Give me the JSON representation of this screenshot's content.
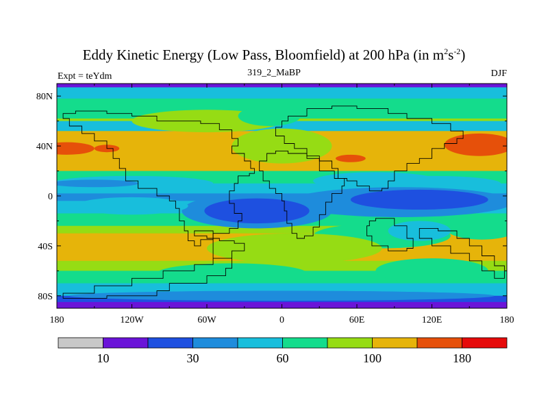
{
  "title": {
    "main": "Eddy Kinetic Energy (Low Pass, Bloomfield) at 200 hPa (in m",
    "sup1": "2",
    "mid": "s",
    "sup2": "-2",
    "end": ")"
  },
  "subtitle": "319_2_MaBP",
  "experiment_label": "Expt = teYdm",
  "season": "DJF",
  "axes": {
    "lat_ticks": [
      {
        "lat": 80,
        "label": "80N"
      },
      {
        "lat": 40,
        "label": "40N"
      },
      {
        "lat": 0,
        "label": "0"
      },
      {
        "lat": -40,
        "label": "40S"
      },
      {
        "lat": -80,
        "label": "80S"
      }
    ],
    "lon_ticks": [
      {
        "lon": -180,
        "label": "180"
      },
      {
        "lon": -120,
        "label": "120W"
      },
      {
        "lon": -60,
        "label": "60W"
      },
      {
        "lon": 0,
        "label": "0"
      },
      {
        "lon": 60,
        "label": "60E"
      },
      {
        "lon": 120,
        "label": "120E"
      },
      {
        "lon": 180,
        "label": "180"
      }
    ],
    "lat_range": [
      -90,
      90
    ],
    "lon_range": [
      -180,
      180
    ]
  },
  "colorbar": {
    "colors": [
      "#c8c8c8",
      "#6a14d8",
      "#1e50e0",
      "#1e8cdc",
      "#18bedc",
      "#14dc8c",
      "#96dc14",
      "#e6b40a",
      "#e6500a",
      "#e60a0a"
    ],
    "labels": [
      {
        "boundary": 1,
        "text": "10"
      },
      {
        "boundary": 3,
        "text": "30"
      },
      {
        "boundary": 5,
        "text": "60"
      },
      {
        "boundary": 7,
        "text": "100"
      },
      {
        "boundary": 9,
        "text": "180"
      }
    ]
  },
  "chart_data": {
    "type": "filled-contour-map",
    "variable": "Eddy Kinetic Energy (Low Pass, Bloomfield)",
    "level": "200 hPa",
    "units": "m2s-2",
    "season": "DJF",
    "contour_levels": [
      10,
      20,
      30,
      40,
      60,
      80,
      100,
      140,
      180
    ],
    "zonal_bands": [
      {
        "lat_from": 90,
        "lat_to": 87,
        "level": 1
      },
      {
        "lat_from": 87,
        "lat_to": 78,
        "level": 4
      },
      {
        "lat_from": 78,
        "lat_to": 62,
        "level": 5
      },
      {
        "lat_from": 62,
        "lat_to": 52,
        "level": 6
      },
      {
        "lat_from": 52,
        "lat_to": 20,
        "level": 7
      },
      {
        "lat_from": 20,
        "lat_to": 10,
        "level": 5
      },
      {
        "lat_from": 10,
        "lat_to": 2,
        "level": 4
      },
      {
        "lat_from": 2,
        "lat_to": -4,
        "level": 3
      },
      {
        "lat_from": -4,
        "lat_to": -14,
        "level": 4
      },
      {
        "lat_from": -14,
        "lat_to": -24,
        "level": 5
      },
      {
        "lat_from": -24,
        "lat_to": -30,
        "level": 6
      },
      {
        "lat_from": -30,
        "lat_to": -52,
        "level": 7
      },
      {
        "lat_from": -52,
        "lat_to": -60,
        "level": 6
      },
      {
        "lat_from": -60,
        "lat_to": -70,
        "level": 5
      },
      {
        "lat_from": -70,
        "lat_to": -80,
        "level": 4
      },
      {
        "lat_from": -80,
        "lat_to": -85,
        "level": 2
      },
      {
        "lat_from": -85,
        "lat_to": -90,
        "level": 1
      }
    ],
    "features": [
      {
        "level": 4,
        "shape": "rect",
        "lon": [
          -180,
          180
        ],
        "lat": [
          52,
          60
        ]
      },
      {
        "level": 6,
        "shape": "ellipse",
        "center": [
          -60,
          60
        ],
        "radii": [
          60,
          9
        ]
      },
      {
        "level": 5,
        "shape": "ellipse",
        "center": [
          -10,
          64
        ],
        "radii": [
          25,
          8
        ]
      },
      {
        "level": 6,
        "shape": "ellipse",
        "center": [
          0,
          40
        ],
        "radii": [
          40,
          14
        ]
      },
      {
        "level": 8,
        "shape": "ellipse",
        "center": [
          -172,
          38
        ],
        "radii": [
          22,
          5
        ]
      },
      {
        "level": 8,
        "shape": "ellipse",
        "center": [
          -140,
          38
        ],
        "radii": [
          10,
          3
        ]
      },
      {
        "level": 8,
        "shape": "ellipse",
        "center": [
          158,
          41
        ],
        "radii": [
          28,
          9
        ]
      },
      {
        "level": 8,
        "shape": "ellipse",
        "center": [
          55,
          30
        ],
        "radii": [
          12,
          3
        ]
      },
      {
        "level": 4,
        "shape": "ellipse",
        "center": [
          -120,
          10
        ],
        "radii": [
          65,
          6
        ]
      },
      {
        "level": 4,
        "shape": "ellipse",
        "center": [
          120,
          10
        ],
        "radii": [
          55,
          6
        ]
      },
      {
        "level": 3,
        "shape": "ellipse",
        "center": [
          -150,
          10
        ],
        "radii": [
          35,
          3
        ]
      },
      {
        "level": 4,
        "shape": "ellipse",
        "center": [
          75,
          12
        ],
        "radii": [
          50,
          7
        ]
      },
      {
        "level": 3,
        "shape": "ellipse",
        "center": [
          95,
          -5
        ],
        "radii": [
          90,
          12
        ]
      },
      {
        "level": 2,
        "shape": "ellipse",
        "center": [
          110,
          -3
        ],
        "radii": [
          55,
          8
        ]
      },
      {
        "level": 3,
        "shape": "ellipse",
        "center": [
          -20,
          -12
        ],
        "radii": [
          60,
          14
        ]
      },
      {
        "level": 2,
        "shape": "ellipse",
        "center": [
          -20,
          -12
        ],
        "radii": [
          42,
          10
        ]
      },
      {
        "level": 4,
        "shape": "ellipse",
        "center": [
          -120,
          -8
        ],
        "radii": [
          45,
          7
        ]
      },
      {
        "level": 5,
        "shape": "ellipse",
        "center": [
          160,
          -25
        ],
        "radii": [
          30,
          10
        ]
      },
      {
        "level": 5,
        "shape": "ellipse",
        "center": [
          80,
          -32
        ],
        "radii": [
          55,
          10
        ]
      },
      {
        "level": 4,
        "shape": "ellipse",
        "center": [
          110,
          -28
        ],
        "radii": [
          25,
          8
        ]
      },
      {
        "level": 6,
        "shape": "ellipse",
        "center": [
          10,
          -42
        ],
        "radii": [
          70,
          12
        ]
      },
      {
        "level": 7,
        "shape": "ellipse",
        "center": [
          -150,
          -40
        ],
        "radii": [
          35,
          10
        ]
      },
      {
        "level": 5,
        "shape": "ellipse",
        "center": [
          120,
          -60
        ],
        "radii": [
          45,
          10
        ]
      },
      {
        "level": 5,
        "shape": "ellipse",
        "center": [
          -40,
          -62
        ],
        "radii": [
          60,
          8
        ]
      },
      {
        "level": 3,
        "shape": "ellipse",
        "center": [
          0,
          -80
        ],
        "radii": [
          170,
          4
        ]
      }
    ],
    "land_outlines": [
      [
        [
          -95,
          60
        ],
        [
          -65,
          60
        ],
        [
          -50,
          58
        ],
        [
          -40,
          53
        ],
        [
          -35,
          46
        ],
        [
          -40,
          40
        ],
        [
          -30,
          34
        ],
        [
          -25,
          28
        ],
        [
          -22,
          22
        ],
        [
          -26,
          18
        ],
        [
          -35,
          16
        ],
        [
          -38,
          10
        ],
        [
          -42,
          4
        ],
        [
          -38,
          -6
        ],
        [
          -32,
          -14
        ],
        [
          -35,
          -20
        ],
        [
          -42,
          -26
        ],
        [
          -55,
          -30
        ],
        [
          -65,
          -35
        ],
        [
          -70,
          -40
        ],
        [
          -75,
          -36
        ],
        [
          -78,
          -28
        ],
        [
          -82,
          -20
        ],
        [
          -85,
          -10
        ],
        [
          -90,
          -4
        ],
        [
          -100,
          0
        ],
        [
          -115,
          6
        ],
        [
          -125,
          12
        ],
        [
          -130,
          22
        ],
        [
          -135,
          30
        ],
        [
          -140,
          38
        ],
        [
          -150,
          44
        ],
        [
          -160,
          50
        ],
        [
          -170,
          56
        ],
        [
          -175,
          62
        ],
        [
          -165,
          66
        ],
        [
          -140,
          68
        ],
        [
          -120,
          66
        ],
        [
          -100,
          64
        ],
        [
          -95,
          60
        ]
      ],
      [
        [
          -70,
          -28
        ],
        [
          -60,
          -32
        ],
        [
          -50,
          -34
        ],
        [
          -38,
          -36
        ],
        [
          -30,
          -38
        ],
        [
          -40,
          -44
        ],
        [
          -55,
          -50
        ],
        [
          -70,
          -55
        ],
        [
          -95,
          -60
        ],
        [
          -120,
          -66
        ],
        [
          -150,
          -72
        ],
        [
          -175,
          -78
        ],
        [
          -175,
          -82
        ],
        [
          -140,
          -82
        ],
        [
          -100,
          -80
        ],
        [
          -90,
          -76
        ],
        [
          -60,
          -70
        ],
        [
          -45,
          -64
        ],
        [
          -40,
          -58
        ],
        [
          -55,
          -50
        ],
        [
          -70,
          -28
        ]
      ],
      [
        [
          5,
          60
        ],
        [
          20,
          64
        ],
        [
          40,
          70
        ],
        [
          60,
          72
        ],
        [
          85,
          70
        ],
        [
          100,
          66
        ],
        [
          120,
          62
        ],
        [
          135,
          58
        ],
        [
          145,
          52
        ],
        [
          140,
          46
        ],
        [
          130,
          42
        ],
        [
          120,
          38
        ],
        [
          110,
          30
        ],
        [
          100,
          26
        ],
        [
          90,
          20
        ],
        [
          85,
          12
        ],
        [
          80,
          6
        ],
        [
          70,
          4
        ],
        [
          60,
          8
        ],
        [
          52,
          12
        ],
        [
          42,
          14
        ],
        [
          30,
          20
        ],
        [
          20,
          32
        ],
        [
          10,
          38
        ],
        [
          2,
          42
        ],
        [
          -5,
          48
        ],
        [
          0,
          55
        ],
        [
          5,
          60
        ]
      ],
      [
        [
          5,
          36
        ],
        [
          20,
          34
        ],
        [
          30,
          30
        ],
        [
          40,
          28
        ],
        [
          45,
          22
        ],
        [
          50,
          14
        ],
        [
          48,
          8
        ],
        [
          40,
          2
        ],
        [
          35,
          -5
        ],
        [
          30,
          -15
        ],
        [
          25,
          -25
        ],
        [
          18,
          -32
        ],
        [
          12,
          -34
        ],
        [
          8,
          -30
        ],
        [
          4,
          -22
        ],
        [
          2,
          -12
        ],
        [
          0,
          -4
        ],
        [
          -5,
          2
        ],
        [
          -10,
          6
        ],
        [
          -15,
          12
        ],
        [
          -18,
          20
        ],
        [
          -12,
          28
        ],
        [
          -5,
          34
        ],
        [
          5,
          36
        ]
      ],
      [
        [
          75,
          -20
        ],
        [
          90,
          -18
        ],
        [
          100,
          -24
        ],
        [
          105,
          -34
        ],
        [
          100,
          -42
        ],
        [
          85,
          -44
        ],
        [
          72,
          -40
        ],
        [
          68,
          -32
        ],
        [
          70,
          -24
        ],
        [
          75,
          -20
        ]
      ],
      [
        [
          110,
          -28
        ],
        [
          125,
          -26
        ],
        [
          140,
          -28
        ],
        [
          150,
          -34
        ],
        [
          160,
          -40
        ],
        [
          170,
          -48
        ],
        [
          178,
          -56
        ],
        [
          178,
          -64
        ],
        [
          170,
          -66
        ],
        [
          160,
          -60
        ],
        [
          150,
          -52
        ],
        [
          135,
          -46
        ],
        [
          120,
          -40
        ],
        [
          110,
          -34
        ],
        [
          110,
          -28
        ]
      ]
    ]
  }
}
